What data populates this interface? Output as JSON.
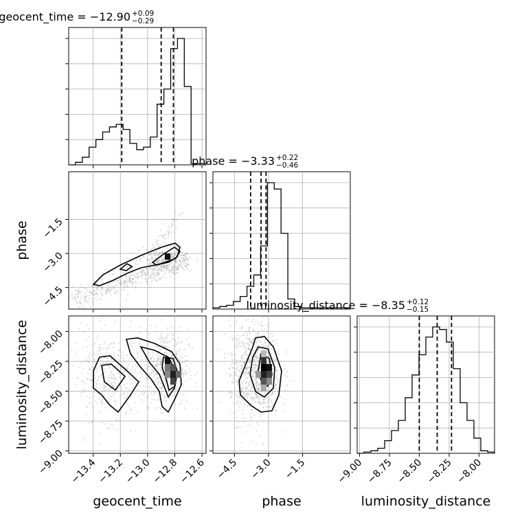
{
  "parameters": [
    "geocent_time",
    "phase",
    "luminosity_distance"
  ],
  "titles": {
    "geocent_time": {
      "name": "geocent_time",
      "value": "−12.90",
      "plus": "+0.09",
      "minus": "−0.29"
    },
    "phase": {
      "name": "phase",
      "value": "−3.33",
      "plus": "+0.22",
      "minus": "−0.46"
    },
    "luminosity_distance": {
      "name": "luminosity_distance",
      "value": "−8.35",
      "plus": "+0.12",
      "minus": "−0.15"
    }
  },
  "axis_labels": {
    "geocent_time": "geocent_time",
    "phase": "phase",
    "luminosity_distance": "luminosity_distance"
  },
  "chart_data": {
    "type": "corner",
    "parameters": [
      "geocent_time",
      "phase",
      "luminosity_distance"
    ],
    "ranges": {
      "geocent_time": [
        -13.58,
        -12.57
      ],
      "phase": [
        -5.45,
        0.6
      ],
      "luminosity_distance": [
        -9.02,
        -7.87
      ]
    },
    "ticks": {
      "geocent_time": {
        "values": [
          -13.4,
          -13.2,
          -13.0,
          -12.8,
          -12.6
        ],
        "labels": [
          "−13.4",
          "−13.2",
          "−13.0",
          "−12.8",
          "−12.6"
        ]
      },
      "phase": {
        "values": [
          -4.5,
          -3.0,
          -1.5
        ],
        "labels": [
          "−4.5",
          "−3.0",
          "−1.5"
        ]
      },
      "luminosity_distance": {
        "values": [
          -9.0,
          -8.75,
          -8.5,
          -8.25,
          -8.0
        ],
        "labels": [
          "−9.00",
          "−8.75",
          "−8.50",
          "−8.25",
          "−8.00"
        ]
      }
    },
    "quantiles": {
      "geocent_time": [
        -13.19,
        -12.9,
        -12.81
      ],
      "phase": [
        -3.79,
        -3.33,
        -3.11
      ],
      "luminosity_distance": [
        -8.5,
        -8.35,
        -8.23
      ]
    },
    "histograms": {
      "geocent_time": {
        "edges_start": -13.58,
        "bin_width": 0.05,
        "counts": [
          0,
          0.02,
          0.06,
          0.14,
          0.2,
          0.26,
          0.3,
          0.32,
          0.28,
          0.17,
          0.12,
          0.14,
          0.22,
          0.48,
          0.6,
          0.92,
          1.0,
          0.62,
          0.01,
          0.01
        ]
      },
      "phase": {
        "edges_start": -5.45,
        "bin_width": 0.3,
        "counts": [
          0.01,
          0.02,
          0.03,
          0.06,
          0.1,
          0.18,
          0.27,
          0.5,
          1.0,
          0.95,
          0.6,
          0.08,
          0.02,
          0.01,
          0.01,
          0.01,
          0.01,
          0.01,
          0.01,
          0.01
        ]
      },
      "luminosity_distance": {
        "edges_start": -9.02,
        "bin_width": 0.0575,
        "counts": [
          0.0,
          0.01,
          0.02,
          0.04,
          0.1,
          0.18,
          0.26,
          0.44,
          0.62,
          0.78,
          0.92,
          1.0,
          0.98,
          0.88,
          0.67,
          0.4,
          0.26,
          0.12,
          0.02,
          0.01
        ]
      }
    },
    "grid": true,
    "grid_color": "#b0b0b0",
    "line_color": "#000000",
    "point_color": "#888888"
  }
}
